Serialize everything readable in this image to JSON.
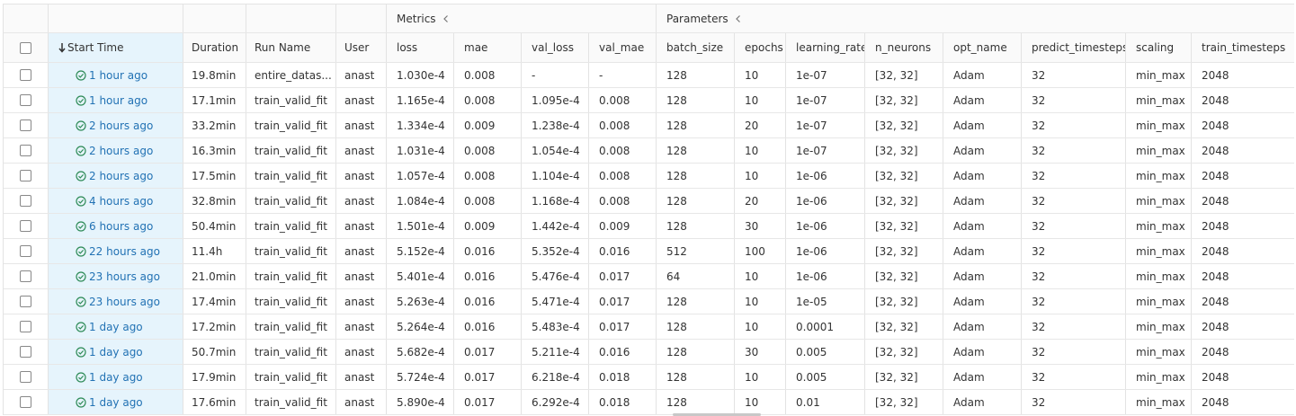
{
  "groups": {
    "metrics": "Metrics",
    "parameters": "Parameters"
  },
  "columns": {
    "start_time": "Start Time",
    "duration": "Duration",
    "run_name": "Run Name",
    "user": "User",
    "loss": "loss",
    "mae": "mae",
    "val_loss": "val_loss",
    "val_mae": "val_mae",
    "batch_size": "batch_size",
    "epochs": "epochs",
    "learning_rate": "learning_rate",
    "n_neurons": "n_neurons",
    "opt_name": "opt_name",
    "predict_timesteps": "predict_timesteps",
    "scaling": "scaling",
    "train_timesteps": "train_timesteps"
  },
  "status_color": "#2e8b57",
  "link_color": "#2272b4",
  "icons": {
    "sort": "arrow-down-icon",
    "status": "check-circle-icon",
    "collapse": "chevron-left-icon"
  },
  "rows": [
    {
      "start": "1 hour ago",
      "duration": "19.8min",
      "run_name": "entire_datas...",
      "user": "anast",
      "loss": "1.030e-4",
      "mae": "0.008",
      "val_loss": "-",
      "val_mae": "-",
      "batch_size": "128",
      "epochs": "10",
      "learning_rate": "1e-07",
      "n_neurons": "[32, 32]",
      "opt_name": "Adam",
      "predict_timesteps": "32",
      "scaling": "min_max",
      "train_timesteps": "2048"
    },
    {
      "start": "1 hour ago",
      "duration": "17.1min",
      "run_name": "train_valid_fit",
      "user": "anast",
      "loss": "1.165e-4",
      "mae": "0.008",
      "val_loss": "1.095e-4",
      "val_mae": "0.008",
      "batch_size": "128",
      "epochs": "10",
      "learning_rate": "1e-07",
      "n_neurons": "[32, 32]",
      "opt_name": "Adam",
      "predict_timesteps": "32",
      "scaling": "min_max",
      "train_timesteps": "2048"
    },
    {
      "start": "2 hours ago",
      "duration": "33.2min",
      "run_name": "train_valid_fit",
      "user": "anast",
      "loss": "1.334e-4",
      "mae": "0.009",
      "val_loss": "1.238e-4",
      "val_mae": "0.008",
      "batch_size": "128",
      "epochs": "20",
      "learning_rate": "1e-07",
      "n_neurons": "[32, 32]",
      "opt_name": "Adam",
      "predict_timesteps": "32",
      "scaling": "min_max",
      "train_timesteps": "2048"
    },
    {
      "start": "2 hours ago",
      "duration": "16.3min",
      "run_name": "train_valid_fit",
      "user": "anast",
      "loss": "1.031e-4",
      "mae": "0.008",
      "val_loss": "1.054e-4",
      "val_mae": "0.008",
      "batch_size": "128",
      "epochs": "10",
      "learning_rate": "1e-07",
      "n_neurons": "[32, 32]",
      "opt_name": "Adam",
      "predict_timesteps": "32",
      "scaling": "min_max",
      "train_timesteps": "2048"
    },
    {
      "start": "2 hours ago",
      "duration": "17.5min",
      "run_name": "train_valid_fit",
      "user": "anast",
      "loss": "1.057e-4",
      "mae": "0.008",
      "val_loss": "1.104e-4",
      "val_mae": "0.008",
      "batch_size": "128",
      "epochs": "10",
      "learning_rate": "1e-06",
      "n_neurons": "[32, 32]",
      "opt_name": "Adam",
      "predict_timesteps": "32",
      "scaling": "min_max",
      "train_timesteps": "2048"
    },
    {
      "start": "4 hours ago",
      "duration": "32.8min",
      "run_name": "train_valid_fit",
      "user": "anast",
      "loss": "1.084e-4",
      "mae": "0.008",
      "val_loss": "1.168e-4",
      "val_mae": "0.008",
      "batch_size": "128",
      "epochs": "20",
      "learning_rate": "1e-06",
      "n_neurons": "[32, 32]",
      "opt_name": "Adam",
      "predict_timesteps": "32",
      "scaling": "min_max",
      "train_timesteps": "2048"
    },
    {
      "start": "6 hours ago",
      "duration": "50.4min",
      "run_name": "train_valid_fit",
      "user": "anast",
      "loss": "1.501e-4",
      "mae": "0.009",
      "val_loss": "1.442e-4",
      "val_mae": "0.009",
      "batch_size": "128",
      "epochs": "30",
      "learning_rate": "1e-06",
      "n_neurons": "[32, 32]",
      "opt_name": "Adam",
      "predict_timesteps": "32",
      "scaling": "min_max",
      "train_timesteps": "2048"
    },
    {
      "start": "22 hours ago",
      "duration": "11.4h",
      "run_name": "train_valid_fit",
      "user": "anast",
      "loss": "5.152e-4",
      "mae": "0.016",
      "val_loss": "5.352e-4",
      "val_mae": "0.016",
      "batch_size": "512",
      "epochs": "100",
      "learning_rate": "1e-06",
      "n_neurons": "[32, 32]",
      "opt_name": "Adam",
      "predict_timesteps": "32",
      "scaling": "min_max",
      "train_timesteps": "2048"
    },
    {
      "start": "23 hours ago",
      "duration": "21.0min",
      "run_name": "train_valid_fit",
      "user": "anast",
      "loss": "5.401e-4",
      "mae": "0.016",
      "val_loss": "5.476e-4",
      "val_mae": "0.017",
      "batch_size": "64",
      "epochs": "10",
      "learning_rate": "1e-06",
      "n_neurons": "[32, 32]",
      "opt_name": "Adam",
      "predict_timesteps": "32",
      "scaling": "min_max",
      "train_timesteps": "2048"
    },
    {
      "start": "23 hours ago",
      "duration": "17.4min",
      "run_name": "train_valid_fit",
      "user": "anast",
      "loss": "5.263e-4",
      "mae": "0.016",
      "val_loss": "5.471e-4",
      "val_mae": "0.017",
      "batch_size": "128",
      "epochs": "10",
      "learning_rate": "1e-05",
      "n_neurons": "[32, 32]",
      "opt_name": "Adam",
      "predict_timesteps": "32",
      "scaling": "min_max",
      "train_timesteps": "2048"
    },
    {
      "start": "1 day ago",
      "duration": "17.2min",
      "run_name": "train_valid_fit",
      "user": "anast",
      "loss": "5.264e-4",
      "mae": "0.016",
      "val_loss": "5.483e-4",
      "val_mae": "0.017",
      "batch_size": "128",
      "epochs": "10",
      "learning_rate": "0.0001",
      "n_neurons": "[32, 32]",
      "opt_name": "Adam",
      "predict_timesteps": "32",
      "scaling": "min_max",
      "train_timesteps": "2048"
    },
    {
      "start": "1 day ago",
      "duration": "50.7min",
      "run_name": "train_valid_fit",
      "user": "anast",
      "loss": "5.682e-4",
      "mae": "0.017",
      "val_loss": "5.211e-4",
      "val_mae": "0.016",
      "batch_size": "128",
      "epochs": "30",
      "learning_rate": "0.005",
      "n_neurons": "[32, 32]",
      "opt_name": "Adam",
      "predict_timesteps": "32",
      "scaling": "min_max",
      "train_timesteps": "2048"
    },
    {
      "start": "1 day ago",
      "duration": "17.9min",
      "run_name": "train_valid_fit",
      "user": "anast",
      "loss": "5.724e-4",
      "mae": "0.017",
      "val_loss": "6.218e-4",
      "val_mae": "0.018",
      "batch_size": "128",
      "epochs": "10",
      "learning_rate": "0.005",
      "n_neurons": "[32, 32]",
      "opt_name": "Adam",
      "predict_timesteps": "32",
      "scaling": "min_max",
      "train_timesteps": "2048"
    },
    {
      "start": "1 day ago",
      "duration": "17.6min",
      "run_name": "train_valid_fit",
      "user": "anast",
      "loss": "5.890e-4",
      "mae": "0.017",
      "val_loss": "6.292e-4",
      "val_mae": "0.018",
      "batch_size": "128",
      "epochs": "10",
      "learning_rate": "0.01",
      "n_neurons": "[32, 32]",
      "opt_name": "Adam",
      "predict_timesteps": "32",
      "scaling": "min_max",
      "train_timesteps": "2048"
    }
  ]
}
